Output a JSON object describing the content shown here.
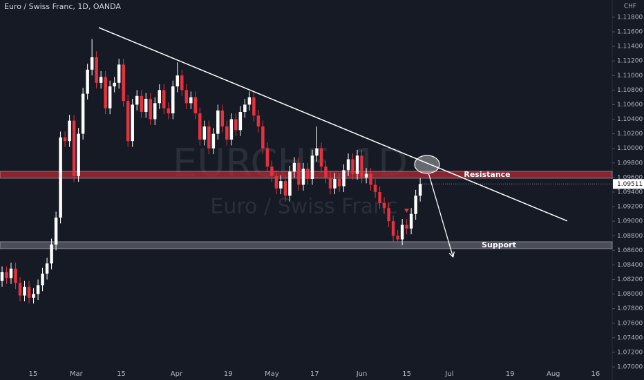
{
  "chart_data": {
    "type": "candlestick",
    "title": "Euro / Swiss Franc, 1D, OANDA",
    "watermark_symbol": "EURCHF, 1D",
    "watermark_name": "Euro / Swiss Franc",
    "currency": "CHF",
    "up_color": "#ffffff",
    "down_color": "#e5323c",
    "background": "#161a25",
    "grid": false,
    "series": {
      "open": [
        1.0818,
        1.083,
        1.0822,
        1.0835,
        1.0815,
        1.0798,
        1.081,
        1.0795,
        1.08,
        1.0812,
        1.0828,
        1.0842,
        1.0868,
        1.0905,
        1.1015,
        1.101,
        1.1038,
        1.0962,
        1.102,
        1.1075,
        1.1108,
        1.1125,
        1.109,
        1.1098,
        1.1055,
        1.1085,
        1.109,
        1.1115,
        1.1065,
        1.101,
        1.106,
        1.1072,
        1.105,
        1.1068,
        1.104,
        1.1062,
        1.108,
        1.1055,
        1.1048,
        1.1085,
        1.11,
        1.108,
        1.1062,
        1.107,
        1.1048,
        1.1012,
        1.103,
        1.1,
        1.102,
        1.1052,
        1.103,
        1.1012,
        1.104,
        1.1025,
        1.105,
        1.106,
        1.107,
        1.1045,
        1.103,
        1.1,
        1.0975,
        1.0962,
        1.0945,
        1.0955,
        1.0935,
        1.0968,
        1.098,
        1.095,
        1.0972,
        1.0958,
        1.099,
        1.1,
        1.0975,
        1.096,
        1.0945,
        1.0958,
        1.0948,
        1.097,
        1.0985,
        1.0965,
        1.099,
        1.096,
        1.0965,
        1.095,
        1.094,
        1.0925,
        1.0918,
        1.09,
        1.088,
        1.0875,
        1.0895,
        1.089,
        1.091,
        1.0935
      ],
      "high": [
        1.0838,
        1.0838,
        1.0843,
        1.0843,
        1.0823,
        1.0818,
        1.0818,
        1.0808,
        1.082,
        1.0836,
        1.085,
        1.0876,
        1.0913,
        1.1023,
        1.1023,
        1.1046,
        1.1046,
        1.1028,
        1.1083,
        1.1116,
        1.115,
        1.1133,
        1.1106,
        1.1106,
        1.1093,
        1.1098,
        1.1123,
        1.1123,
        1.1073,
        1.1068,
        1.108,
        1.108,
        1.1076,
        1.1076,
        1.107,
        1.1088,
        1.1088,
        1.1063,
        1.1093,
        1.1118,
        1.1108,
        1.1088,
        1.1078,
        1.1078,
        1.1056,
        1.1038,
        1.1038,
        1.1028,
        1.106,
        1.106,
        1.1038,
        1.1048,
        1.1048,
        1.1058,
        1.1068,
        1.1078,
        1.1078,
        1.1053,
        1.1038,
        1.1008,
        1.0983,
        1.097,
        1.0963,
        1.0963,
        1.0976,
        1.0988,
        1.0988,
        1.098,
        1.098,
        1.0998,
        1.103,
        1.1008,
        1.0983,
        1.0968,
        1.0966,
        1.0966,
        1.0978,
        1.0993,
        1.0993,
        1.0998,
        1.0998,
        1.0973,
        1.0973,
        1.0958,
        1.0948,
        1.0933,
        1.0926,
        1.0908,
        1.0888,
        1.0903,
        1.0903,
        1.0918,
        1.0943,
        1.0959
      ],
      "low": [
        1.081,
        1.0814,
        1.0814,
        1.0807,
        1.079,
        1.079,
        1.0787,
        1.0787,
        1.0792,
        1.0804,
        1.082,
        1.0834,
        1.086,
        1.0897,
        1.1002,
        1.1002,
        1.0954,
        1.0954,
        1.1012,
        1.1067,
        1.11,
        1.1082,
        1.1082,
        1.1047,
        1.1047,
        1.1077,
        1.1082,
        1.1057,
        1.1002,
        1.1002,
        1.1052,
        1.1042,
        1.1042,
        1.1032,
        1.1032,
        1.1054,
        1.1047,
        1.104,
        1.104,
        1.1077,
        1.1072,
        1.1054,
        1.1054,
        1.104,
        1.1004,
        1.1004,
        1.0992,
        1.0992,
        1.1012,
        1.1022,
        1.1004,
        1.1004,
        1.1017,
        1.1017,
        1.1042,
        1.1052,
        1.1037,
        1.1022,
        1.0992,
        1.0967,
        1.0954,
        1.0937,
        1.0937,
        1.0927,
        1.0927,
        1.096,
        1.0942,
        1.0942,
        1.095,
        1.095,
        1.0982,
        1.0967,
        1.0952,
        1.0937,
        1.0937,
        1.094,
        1.094,
        1.0962,
        1.0957,
        1.0957,
        1.0952,
        1.0952,
        1.0942,
        1.0932,
        1.0917,
        1.091,
        1.0892,
        1.0872,
        1.087,
        1.0867,
        1.0882,
        1.0882,
        1.0902,
        1.0927
      ],
      "close": [
        1.083,
        1.0822,
        1.0835,
        1.0815,
        1.0798,
        1.081,
        1.0795,
        1.08,
        1.0812,
        1.0828,
        1.0842,
        1.0868,
        1.0905,
        1.1015,
        1.101,
        1.1038,
        1.0962,
        1.102,
        1.1075,
        1.1108,
        1.1125,
        1.109,
        1.1098,
        1.1055,
        1.1085,
        1.109,
        1.1115,
        1.1065,
        1.101,
        1.106,
        1.1072,
        1.105,
        1.1068,
        1.104,
        1.1062,
        1.108,
        1.1055,
        1.1048,
        1.1085,
        1.11,
        1.108,
        1.1062,
        1.107,
        1.1048,
        1.1012,
        1.103,
        1.1,
        1.102,
        1.1052,
        1.103,
        1.1012,
        1.104,
        1.1025,
        1.105,
        1.106,
        1.107,
        1.1045,
        1.103,
        1.1,
        1.0975,
        1.0962,
        1.0945,
        1.0955,
        1.0935,
        1.0968,
        1.098,
        1.095,
        1.0972,
        1.0958,
        1.099,
        1.1,
        1.0975,
        1.096,
        1.0945,
        1.0958,
        1.0948,
        1.097,
        1.0985,
        1.0965,
        1.099,
        1.096,
        1.0965,
        1.095,
        1.094,
        1.0925,
        1.0918,
        1.09,
        1.088,
        1.0875,
        1.0895,
        1.089,
        1.091,
        1.0935,
        1.09511
      ]
    },
    "last_label": "1.09511",
    "xlim": [
      -0.46,
      135.7
    ],
    "ylim": [
      1.06868,
      1.12036
    ],
    "xticks": [
      {
        "value": 6.9,
        "label": "15"
      },
      {
        "value": 16.5,
        "label": "Mar"
      },
      {
        "value": 26.5,
        "label": "15"
      },
      {
        "value": 38.8,
        "label": "Apr"
      },
      {
        "value": 50.3,
        "label": "19"
      },
      {
        "value": 60,
        "label": "May"
      },
      {
        "value": 69.5,
        "label": "17"
      },
      {
        "value": 80,
        "label": "Jun"
      },
      {
        "value": 90,
        "label": "15"
      },
      {
        "value": 99.5,
        "label": "Jul"
      },
      {
        "value": 113,
        "label": "19"
      },
      {
        "value": 122.6,
        "label": "Aug"
      },
      {
        "value": 132,
        "label": "16"
      }
    ],
    "yticks": [
      {
        "value": 1.07,
        "label": "1.07000"
      },
      {
        "value": 1.072,
        "label": "1.07200"
      },
      {
        "value": 1.074,
        "label": "1.07400"
      },
      {
        "value": 1.076,
        "label": "1.07600"
      },
      {
        "value": 1.078,
        "label": "1.07800"
      },
      {
        "value": 1.08,
        "label": "1.08000"
      },
      {
        "value": 1.082,
        "label": "1.08200"
      },
      {
        "value": 1.084,
        "label": "1.08400"
      },
      {
        "value": 1.086,
        "label": "1.08600"
      },
      {
        "value": 1.088,
        "label": "1.08800"
      },
      {
        "value": 1.09,
        "label": "1.09000"
      },
      {
        "value": 1.092,
        "label": "1.09200"
      },
      {
        "value": 1.094,
        "label": "1.09400"
      },
      {
        "value": 1.096,
        "label": "1.09600"
      },
      {
        "value": 1.098,
        "label": "1.09800"
      },
      {
        "value": 1.1,
        "label": "1.10000"
      },
      {
        "value": 1.102,
        "label": "1.10200"
      },
      {
        "value": 1.104,
        "label": "1.10400"
      },
      {
        "value": 1.106,
        "label": "1.10600"
      },
      {
        "value": 1.108,
        "label": "1.10800"
      },
      {
        "value": 1.11,
        "label": "1.11000"
      },
      {
        "value": 1.112,
        "label": "1.11200"
      },
      {
        "value": 1.114,
        "label": "1.11400"
      },
      {
        "value": 1.116,
        "label": "1.11600"
      },
      {
        "value": 1.118,
        "label": "1.11800"
      }
    ],
    "zones": [
      {
        "name": "Resistance",
        "low": 1.0959,
        "high": 1.09685,
        "color": "#b22833"
      },
      {
        "name": "Support",
        "low": 1.08623,
        "high": 1.08718,
        "color": "#5d606b"
      }
    ],
    "trendline": {
      "x": [
        21.5,
        125.7
      ],
      "y": [
        1.11657,
        1.09003
      ]
    },
    "arrow": {
      "x": [
        94.9,
        100.3
      ],
      "y": [
        1.09647,
        1.08509
      ]
    }
  }
}
